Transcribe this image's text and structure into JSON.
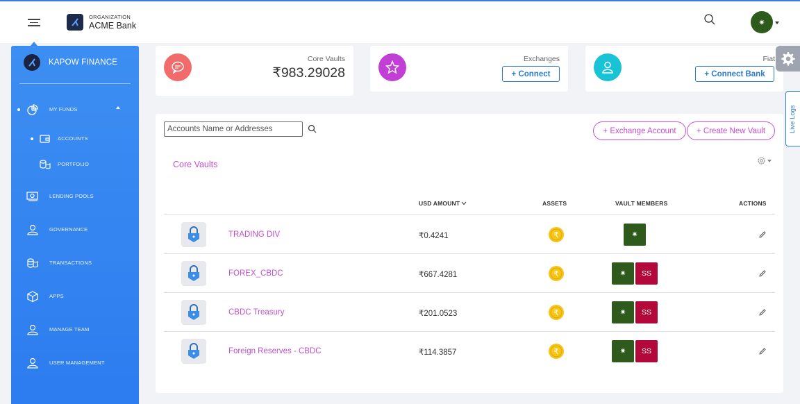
{
  "header": {
    "org_label": "ORGANIZATION",
    "org_name": "ACME Bank",
    "avatar_text": "✷"
  },
  "sidebar": {
    "brand": "KAPOW FINANCE",
    "items": [
      {
        "label": "MY FUNDS",
        "icon": "pie-chart-icon"
      },
      {
        "label": "ACCOUNTS",
        "icon": "wallet-icon"
      },
      {
        "label": "PORTFOLIO",
        "icon": "coins-icon"
      },
      {
        "label": "LENDING POOLS",
        "icon": "money-icon"
      },
      {
        "label": "GOVERNANCE",
        "icon": "user-icon"
      },
      {
        "label": "TRANSACTIONS",
        "icon": "transactions-icon"
      },
      {
        "label": "APPS",
        "icon": "cube-icon"
      },
      {
        "label": "MANAGE TEAM",
        "icon": "user-icon"
      },
      {
        "label": "USER MANAGEMENT",
        "icon": "user-icon"
      }
    ]
  },
  "summary": {
    "core_vaults_label": "Core Vaults",
    "core_vaults_value": "₹983.29028",
    "exchanges_label": "Exchanges",
    "exchanges_button": "+ Connect",
    "fiat_label": "Fiat",
    "fiat_button": "+ Connect Bank"
  },
  "side_tabs": {
    "live_logs": "Live Logs"
  },
  "main": {
    "search_placeholder": "Accounts Name or Addresses",
    "exchange_account_button": "+ Exchange Account",
    "create_vault_button": "+ Create New Vault",
    "section_title": "Core Vaults",
    "columns": {
      "usd_amount": "USD AMOUNT",
      "assets": "ASSETS",
      "vault_members": "VAULT MEMBERS",
      "actions": "ACTIONS"
    },
    "rows": [
      {
        "name": "TRADING DIV",
        "amount": "₹0.4241",
        "members": [
          "✷"
        ]
      },
      {
        "name": "FOREX_CBDC",
        "amount": "₹667.4281",
        "members": [
          "✷",
          "SS"
        ]
      },
      {
        "name": "CBDC Treasury",
        "amount": "₹201.0523",
        "members": [
          "✷",
          "SS"
        ]
      },
      {
        "name": "Foreign Reserves - CBDC",
        "amount": "₹114.3857",
        "members": [
          "✷",
          "SS"
        ]
      }
    ]
  },
  "colors": {
    "sidebar": "#3d8ef2",
    "accent_purple": "#c24fcf",
    "accent_blue": "#2b7cd0",
    "member_green": "#2e5a1c",
    "member_red": "#b2083a"
  }
}
